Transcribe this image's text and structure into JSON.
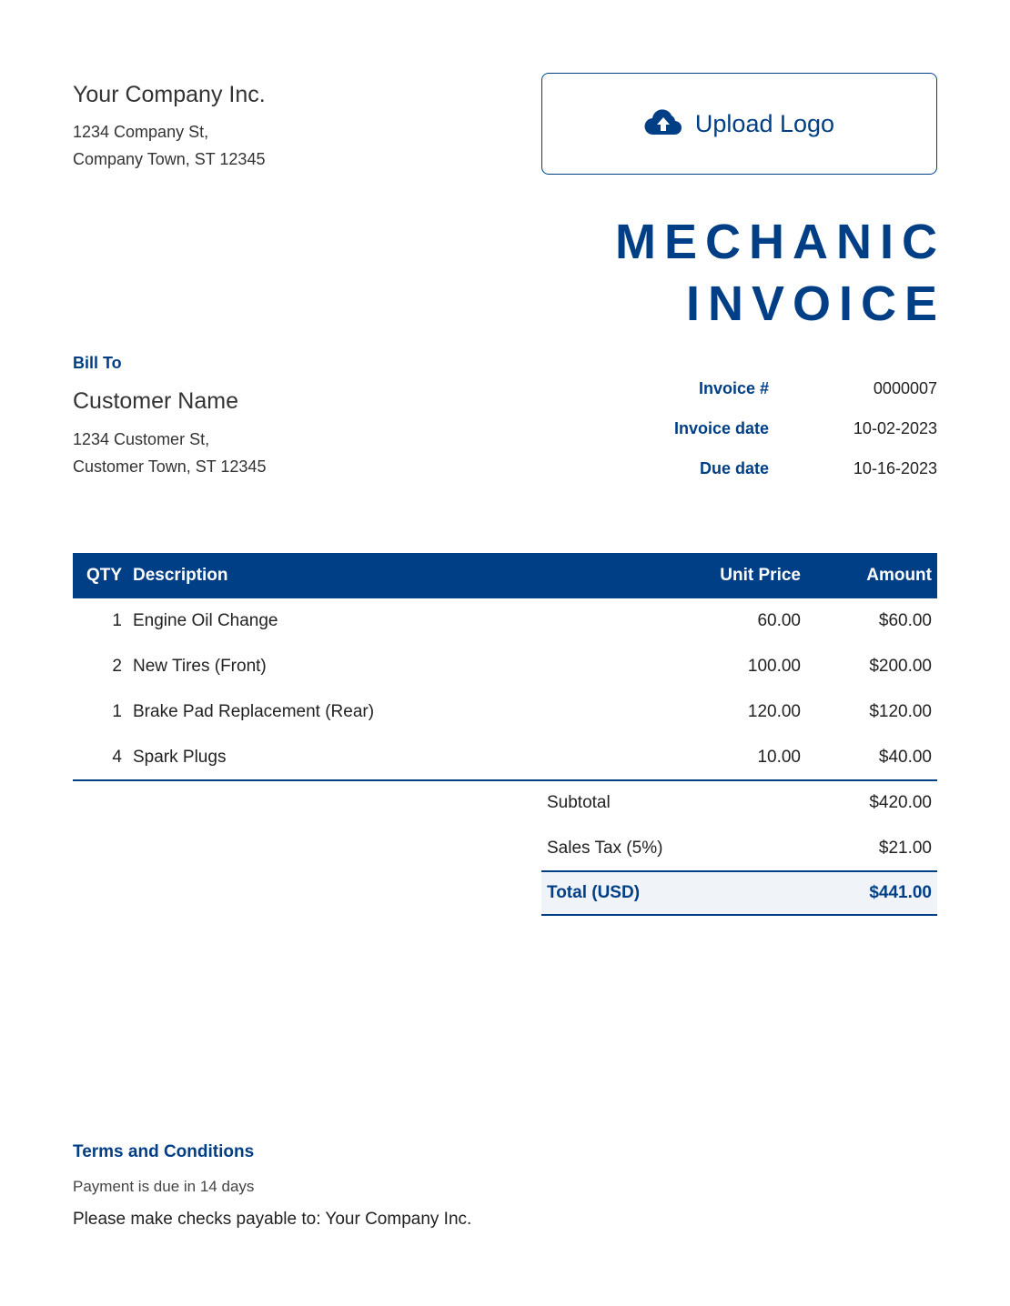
{
  "company": {
    "name": "Your Company Inc.",
    "address_line1": "1234 Company St,",
    "address_line2": "Company Town, ST 12345"
  },
  "logo": {
    "label": "Upload Logo",
    "icon": "cloud-upload-icon"
  },
  "title": {
    "line1": "MECHANIC",
    "line2": "INVOICE"
  },
  "bill_to": {
    "heading": "Bill To",
    "name": "Customer Name",
    "address_line1": "1234 Customer St,",
    "address_line2": "Customer Town, ST 12345"
  },
  "meta": [
    {
      "label": "Invoice #",
      "value": "0000007"
    },
    {
      "label": "Invoice date",
      "value": "10-02-2023"
    },
    {
      "label": "Due date",
      "value": "10-16-2023"
    }
  ],
  "table": {
    "headers": {
      "qty": "QTY",
      "description": "Description",
      "unit_price": "Unit Price",
      "amount": "Amount"
    },
    "rows": [
      {
        "qty": "1",
        "description": "Engine Oil Change",
        "unit_price": "60.00",
        "amount": "$60.00"
      },
      {
        "qty": "2",
        "description": "New Tires (Front)",
        "unit_price": "100.00",
        "amount": "$200.00"
      },
      {
        "qty": "1",
        "description": "Brake Pad Replacement (Rear)",
        "unit_price": "120.00",
        "amount": "$120.00"
      },
      {
        "qty": "4",
        "description": "Spark Plugs",
        "unit_price": "10.00",
        "amount": "$40.00"
      }
    ]
  },
  "totals": {
    "subtotal_label": "Subtotal",
    "subtotal": "$420.00",
    "tax_label": "Sales Tax (5%)",
    "tax": "$21.00",
    "total_label": "Total (USD)",
    "total": "$441.00"
  },
  "terms": {
    "heading": "Terms and Conditions",
    "line1": "Payment is due in 14 days",
    "line2": "Please make checks payable to: Your Company Inc."
  },
  "colors": {
    "accent": "#003f85",
    "total_bg": "#f0f4f9"
  }
}
